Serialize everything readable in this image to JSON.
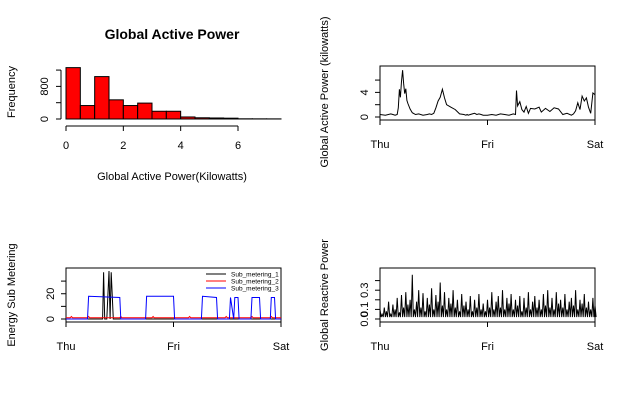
{
  "chart_data": [
    {
      "type": "bar",
      "title": "Global Active Power",
      "xlabel": "Global Active Power(Kilowatts)",
      "ylabel": "Frequency",
      "bar_color": "#ff0000",
      "bin_edges": [
        0,
        0.5,
        1,
        1.5,
        2,
        2.5,
        3,
        3.5,
        4,
        4.5,
        5,
        5.5,
        6,
        6.5,
        7,
        7.5
      ],
      "values": [
        1260,
        330,
        1040,
        470,
        330,
        390,
        190,
        190,
        50,
        30,
        25,
        20,
        5,
        4,
        3
      ],
      "xlim": [
        0,
        7.5
      ],
      "ylim": [
        0,
        1300
      ],
      "xticks": [
        "0",
        "2",
        "4",
        "6"
      ],
      "yticks": [
        "0",
        "800"
      ],
      "yticks_values": [
        0,
        400,
        800,
        1200
      ]
    },
    {
      "type": "line",
      "xlabel": "",
      "ylabel": "Global Active Power (kilowatts)",
      "xticks": [
        "Thu",
        "Fri",
        "Sat"
      ],
      "yticks": [
        "0",
        "4"
      ],
      "yticks_values": [
        0,
        2,
        4,
        6
      ],
      "ylim": [
        0,
        7.8
      ],
      "x": [
        0.0,
        0.05,
        0.1,
        0.12,
        0.14,
        0.16,
        0.17,
        0.18,
        0.19,
        0.2,
        0.21,
        0.22,
        0.23,
        0.24,
        0.25,
        0.26,
        0.28,
        0.3,
        0.33,
        0.36,
        0.4,
        0.44,
        0.46,
        0.48,
        0.5,
        0.52,
        0.54,
        0.56,
        0.58,
        0.6,
        0.62,
        0.66,
        0.7,
        0.74,
        0.78,
        0.8,
        0.81,
        0.82,
        0.84,
        0.86,
        0.88,
        0.9,
        0.92,
        0.94,
        0.96,
        1.0,
        1.04,
        1.08,
        1.12,
        1.16,
        1.2,
        1.24,
        1.26,
        1.27,
        1.28,
        1.3,
        1.32,
        1.34,
        1.36,
        1.38,
        1.4,
        1.44,
        1.48,
        1.5,
        1.54,
        1.58,
        1.62,
        1.66,
        1.7,
        1.74,
        1.78,
        1.8,
        1.82,
        1.84,
        1.86,
        1.88,
        1.9,
        1.92,
        1.94,
        1.96,
        1.98,
        2.0
      ],
      "values": [
        0.4,
        0.3,
        0.5,
        0.4,
        0.3,
        0.4,
        1.5,
        4.5,
        3.2,
        5.8,
        7.6,
        5.5,
        3.8,
        4.6,
        2.7,
        2.2,
        1.3,
        0.7,
        0.4,
        0.5,
        0.3,
        0.4,
        0.5,
        0.4,
        0.6,
        1.5,
        2.6,
        3.2,
        4.5,
        3.1,
        2.0,
        1.6,
        1.2,
        0.5,
        0.4,
        0.3,
        0.4,
        0.3,
        0.4,
        0.5,
        0.6,
        0.4,
        0.5,
        0.4,
        0.3,
        0.3,
        0.4,
        0.3,
        0.5,
        0.4,
        0.3,
        0.5,
        0.4,
        4.3,
        1.8,
        2.5,
        1.2,
        0.8,
        1.7,
        0.6,
        1.4,
        1.3,
        1.6,
        0.8,
        1.4,
        0.9,
        1.5,
        1.3,
        0.4,
        0.6,
        0.3,
        0.5,
        1.0,
        2.3,
        1.2,
        3.4,
        2.6,
        3.1,
        1.6,
        0.6,
        3.9,
        3.6
      ],
      "xlim": [
        0,
        2
      ]
    },
    {
      "type": "line",
      "xlabel": "",
      "ylabel": "Energy Sub Metering",
      "xticks": [
        "Thu",
        "Fri",
        "Sat"
      ],
      "yticks": [
        "0",
        "20"
      ],
      "yticks_values": [
        0,
        10,
        20,
        30
      ],
      "ylim": [
        0,
        38
      ],
      "xlim": [
        0,
        2
      ],
      "legend_position": "top-right",
      "series": [
        {
          "name": "Sub_metering_1",
          "color": "#000000",
          "x": [
            0.0,
            0.3,
            0.34,
            0.35,
            0.36,
            0.38,
            0.4,
            0.41,
            0.42,
            0.44,
            2.0
          ],
          "values": [
            0,
            0,
            0,
            37,
            0,
            0,
            38,
            0,
            37,
            0,
            0
          ]
        },
        {
          "name": "Sub_metering_2",
          "color": "#ff0000",
          "x": [
            0.0,
            0.04,
            0.05,
            0.06,
            0.2,
            0.21,
            0.22,
            0.5,
            0.51,
            0.52,
            0.8,
            0.81,
            0.82,
            1.14,
            1.15,
            1.16,
            1.48,
            1.49,
            1.5,
            1.72,
            1.73,
            1.74,
            1.9,
            1.91,
            1.92,
            2.0
          ],
          "values": [
            1,
            1,
            2,
            1,
            1,
            2,
            1,
            1,
            2,
            1,
            1,
            2,
            1,
            1,
            2,
            1,
            1,
            2,
            1,
            1,
            2,
            1,
            1,
            2,
            1,
            1
          ]
        },
        {
          "name": "Sub_metering_3",
          "color": "#0000ff",
          "x": [
            0.0,
            0.2,
            0.21,
            0.5,
            0.51,
            0.74,
            0.75,
            1.0,
            1.01,
            1.26,
            1.27,
            1.4,
            1.41,
            1.52,
            1.53,
            1.56,
            1.57,
            1.6,
            1.61,
            1.72,
            1.73,
            1.8,
            1.81,
            1.9,
            1.91,
            1.94,
            1.95,
            2.0
          ],
          "values": [
            0,
            0,
            18,
            17,
            0,
            0,
            18,
            18,
            0,
            0,
            18,
            17,
            0,
            0,
            17,
            0,
            17,
            17,
            0,
            0,
            17,
            17,
            0,
            0,
            17,
            17,
            0,
            0
          ]
        }
      ]
    },
    {
      "type": "line",
      "xlabel": "",
      "ylabel": "Global Reactive Power",
      "xticks": [
        "Thu",
        "Fri",
        "Sat"
      ],
      "yticks": [
        "0.0",
        "0.1",
        "0.3"
      ],
      "yticks_values": [
        0,
        0.1,
        0.2,
        0.3,
        0.4
      ],
      "ylim": [
        0,
        0.5
      ],
      "xlim": [
        0,
        2
      ],
      "x": [
        0.0,
        0.02,
        0.04,
        0.06,
        0.08,
        0.1,
        0.12,
        0.14,
        0.16,
        0.18,
        0.2,
        0.22,
        0.24,
        0.26,
        0.28,
        0.3,
        0.32,
        0.34,
        0.36,
        0.38,
        0.4,
        0.42,
        0.44,
        0.46,
        0.48,
        0.5,
        0.52,
        0.54,
        0.56,
        0.58,
        0.6,
        0.62,
        0.64,
        0.66,
        0.68,
        0.7,
        0.72,
        0.74,
        0.76,
        0.78,
        0.8,
        0.82,
        0.84,
        0.86,
        0.88,
        0.9,
        0.92,
        0.94,
        0.96,
        0.98,
        1.0,
        1.02,
        1.04,
        1.06,
        1.08,
        1.1,
        1.12,
        1.14,
        1.16,
        1.18,
        1.2,
        1.22,
        1.24,
        1.26,
        1.28,
        1.3,
        1.32,
        1.34,
        1.36,
        1.38,
        1.4,
        1.42,
        1.44,
        1.46,
        1.48,
        1.5,
        1.52,
        1.54,
        1.56,
        1.58,
        1.6,
        1.62,
        1.64,
        1.66,
        1.68,
        1.7,
        1.72,
        1.74,
        1.76,
        1.78,
        1.8,
        1.82,
        1.84,
        1.86,
        1.88,
        1.9,
        1.92,
        1.94,
        1.96,
        1.98,
        2.0
      ],
      "values": [
        0.1,
        0.05,
        0.12,
        0.08,
        0.18,
        0.05,
        0.15,
        0.1,
        0.22,
        0.07,
        0.25,
        0.12,
        0.28,
        0.15,
        0.2,
        0.46,
        0.1,
        0.18,
        0.3,
        0.12,
        0.27,
        0.08,
        0.22,
        0.15,
        0.32,
        0.1,
        0.25,
        0.18,
        0.38,
        0.14,
        0.28,
        0.1,
        0.22,
        0.16,
        0.3,
        0.12,
        0.2,
        0.08,
        0.26,
        0.14,
        0.18,
        0.1,
        0.24,
        0.08,
        0.2,
        0.12,
        0.26,
        0.1,
        0.16,
        0.08,
        0.2,
        0.12,
        0.28,
        0.1,
        0.18,
        0.24,
        0.12,
        0.3,
        0.1,
        0.22,
        0.16,
        0.26,
        0.1,
        0.2,
        0.14,
        0.24,
        0.08,
        0.22,
        0.12,
        0.28,
        0.1,
        0.18,
        0.24,
        0.12,
        0.2,
        0.1,
        0.26,
        0.14,
        0.3,
        0.12,
        0.22,
        0.1,
        0.28,
        0.16,
        0.2,
        0.12,
        0.26,
        0.1,
        0.18,
        0.22,
        0.14,
        0.3,
        0.1,
        0.2,
        0.16,
        0.26,
        0.12,
        0.18,
        0.1,
        0.22,
        0.14
      ]
    }
  ]
}
